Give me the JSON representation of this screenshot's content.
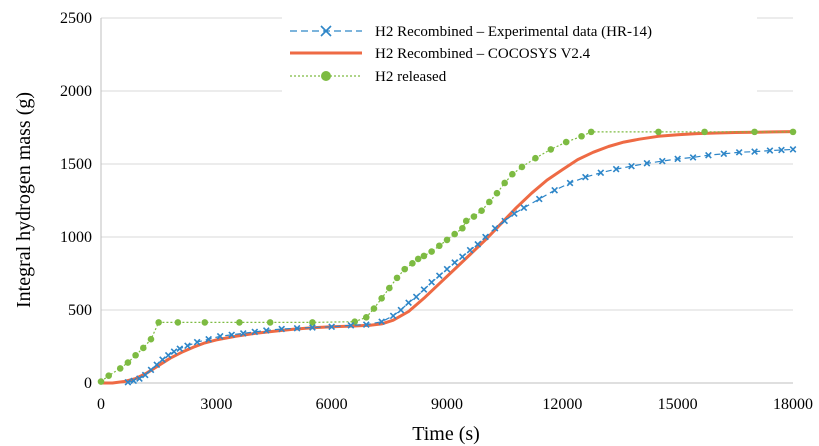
{
  "chart_data": {
    "type": "line",
    "xlabel": "Time (s)",
    "ylabel": "Integral hydrogen mass (g)",
    "xlim": [
      0,
      18000
    ],
    "ylim": [
      0,
      2500
    ],
    "xticks": [
      0,
      3000,
      6000,
      9000,
      12000,
      15000,
      18000
    ],
    "yticks": [
      0,
      500,
      1000,
      1500,
      2000,
      2500
    ],
    "xtick_labels": [
      "0",
      "3000",
      "6000",
      "9000",
      "12000",
      "15000",
      "18000"
    ],
    "ytick_labels": [
      "0",
      "500",
      "1000",
      "1500",
      "2000",
      "2500"
    ],
    "grid": "horizontal",
    "legend_position": "top-right",
    "series": [
      {
        "name": "H2 Recombined – Experimental data (HR-14)",
        "color": "#2e86c8",
        "line_style": "dashed",
        "marker": "x",
        "x": [
          700,
          850,
          1000,
          1150,
          1300,
          1450,
          1600,
          1750,
          1900,
          2050,
          2250,
          2500,
          2800,
          3100,
          3400,
          3700,
          4000,
          4300,
          4700,
          5100,
          5500,
          6000,
          6500,
          6900,
          7300,
          7600,
          7800,
          8000,
          8200,
          8400,
          8600,
          8800,
          9000,
          9200,
          9400,
          9600,
          9800,
          10000,
          10250,
          10500,
          10750,
          11000,
          11400,
          11800,
          12200,
          12600,
          13000,
          13400,
          13800,
          14200,
          14600,
          15000,
          15400,
          15800,
          16200,
          16600,
          17000,
          17400,
          17700,
          18000
        ],
        "y": [
          5,
          15,
          30,
          55,
          90,
          125,
          160,
          190,
          215,
          235,
          255,
          280,
          300,
          320,
          330,
          340,
          350,
          360,
          370,
          375,
          380,
          385,
          395,
          400,
          420,
          460,
          500,
          550,
          590,
          640,
          690,
          735,
          780,
          825,
          865,
          910,
          950,
          1000,
          1060,
          1110,
          1160,
          1200,
          1260,
          1320,
          1370,
          1410,
          1440,
          1465,
          1485,
          1505,
          1520,
          1535,
          1545,
          1560,
          1570,
          1580,
          1585,
          1592,
          1596,
          1600
        ]
      },
      {
        "name": "H2 Recombined – COCOSYS V2.4",
        "color": "#ee6a44",
        "line_style": "solid",
        "marker": "none",
        "x": [
          0,
          300,
          600,
          900,
          1200,
          1500,
          1800,
          2100,
          2400,
          2700,
          3000,
          3500,
          4000,
          4500,
          5000,
          5500,
          6000,
          6500,
          7000,
          7300,
          7600,
          8000,
          8400,
          8800,
          9200,
          9600,
          10000,
          10400,
          10800,
          11200,
          11600,
          12000,
          12400,
          12800,
          13200,
          13600,
          14000,
          14500,
          15000,
          15500,
          16000,
          16500,
          17000,
          17500,
          18000
        ],
        "y": [
          0,
          0,
          10,
          30,
          70,
          120,
          170,
          210,
          245,
          275,
          295,
          320,
          340,
          355,
          368,
          378,
          385,
          390,
          395,
          405,
          430,
          490,
          580,
          680,
          780,
          880,
          980,
          1090,
          1200,
          1300,
          1390,
          1460,
          1530,
          1580,
          1620,
          1650,
          1670,
          1690,
          1700,
          1708,
          1712,
          1716,
          1718,
          1720,
          1722
        ]
      },
      {
        "name": "H2 released",
        "color": "#7dbb42",
        "line_style": "dotted",
        "marker": "circle",
        "x": [
          0,
          200,
          500,
          700,
          900,
          1100,
          1300,
          1500,
          2000,
          2700,
          3600,
          4400,
          5500,
          6600,
          6900,
          7100,
          7300,
          7500,
          7700,
          7900,
          8100,
          8250,
          8400,
          8600,
          8800,
          9000,
          9200,
          9400,
          9500,
          9700,
          9900,
          10100,
          10300,
          10500,
          10700,
          10950,
          11300,
          11700,
          12100,
          12500,
          12750,
          14500,
          15700,
          17000,
          18000
        ],
        "y": [
          10,
          50,
          100,
          140,
          190,
          240,
          300,
          415,
          415,
          415,
          415,
          415,
          415,
          420,
          450,
          510,
          580,
          650,
          720,
          780,
          820,
          850,
          870,
          900,
          940,
          980,
          1020,
          1060,
          1110,
          1140,
          1180,
          1240,
          1300,
          1370,
          1430,
          1480,
          1540,
          1600,
          1650,
          1690,
          1720,
          1720,
          1720,
          1720,
          1720
        ]
      }
    ]
  }
}
